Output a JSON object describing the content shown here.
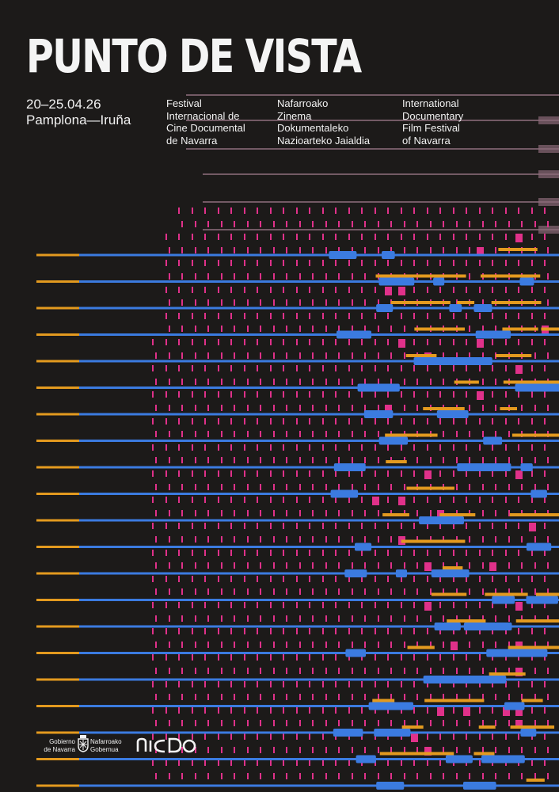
{
  "festival": {
    "title": "PUNTO DE VISTA",
    "dates": "20–25.04.26",
    "city": "Pamplona—Iruña"
  },
  "columns": {
    "spanish": [
      "Festival",
      "Internacional de",
      "Cine Documental",
      "de Navarra"
    ],
    "basque": [
      "Nafarroako",
      "Zinema",
      "Dokumentaleko",
      "Nazioarteko Jaialdia"
    ],
    "english": [
      "International",
      "Documentary",
      "Film Festival",
      "of Navarra"
    ]
  },
  "logos": {
    "government_es": [
      "Gobierno",
      "de Navarra"
    ],
    "government_eu": [
      "Nafarroako",
      "Gobernua"
    ],
    "crest_icon": "navarra-crest-icon",
    "sponsor_icon": "nicdo-logo-icon"
  },
  "colors": {
    "background": "#1c1a19",
    "text": "#f2f2f2",
    "blue": "#3b7be0",
    "orange": "#e39a1f",
    "pink": "#e0318a",
    "mauve": "#8a6a78"
  }
}
